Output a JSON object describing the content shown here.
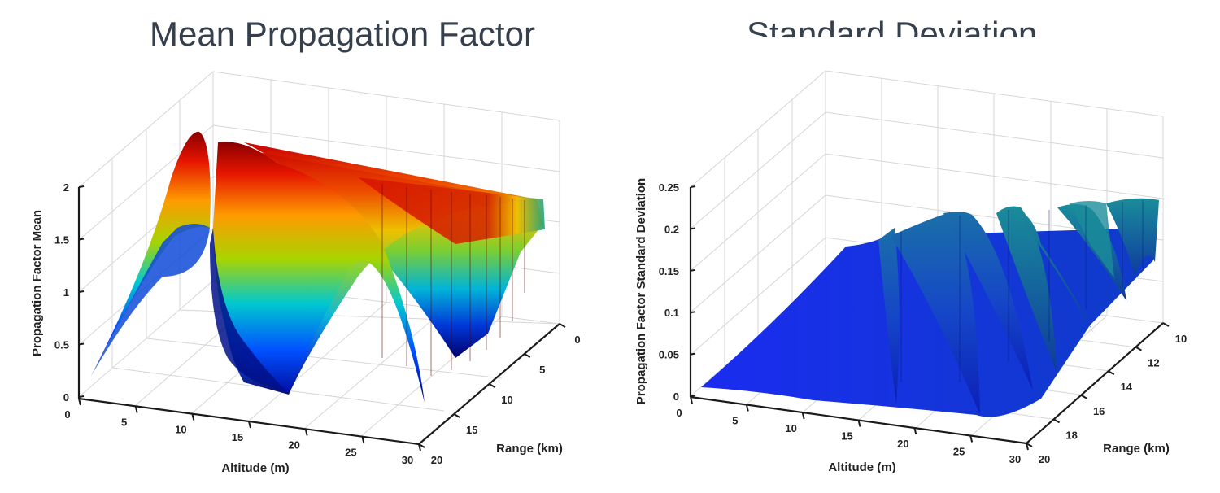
{
  "chart_data": [
    {
      "type": "surface",
      "title": "Mean Propagation Factor",
      "xlabel": "Altitude (m)",
      "ylabel": "Range (km)",
      "zlabel": "Propagation Factor Mean",
      "x_ticks": [
        "0",
        "5",
        "10",
        "15",
        "20",
        "25",
        "30"
      ],
      "y_ticks": [
        "0",
        "5",
        "10",
        "15",
        "20"
      ],
      "z_ticks": [
        "0",
        "0.5",
        "1",
        "1.5",
        "2"
      ],
      "xlim": [
        0,
        30
      ],
      "ylim": [
        0,
        20
      ],
      "zlim": [
        0,
        2
      ],
      "colormap": "jet",
      "grid": true
    },
    {
      "type": "surface",
      "title": "Standard Deviation",
      "xlabel": "Altitude (m)",
      "ylabel": "Range (km)",
      "zlabel": "Propagation Factor Standard Deviation",
      "x_ticks": [
        "0",
        "5",
        "10",
        "15",
        "20",
        "25",
        "30"
      ],
      "y_ticks": [
        "10",
        "12",
        "14",
        "16",
        "18",
        "20"
      ],
      "z_ticks": [
        "0",
        "0.05",
        "0.1",
        "0.15",
        "0.2",
        "0.25"
      ],
      "xlim": [
        0,
        30
      ],
      "ylim": [
        10,
        20
      ],
      "zlim": [
        0,
        0.25
      ],
      "colormap": "blue-teal",
      "grid": true
    }
  ]
}
